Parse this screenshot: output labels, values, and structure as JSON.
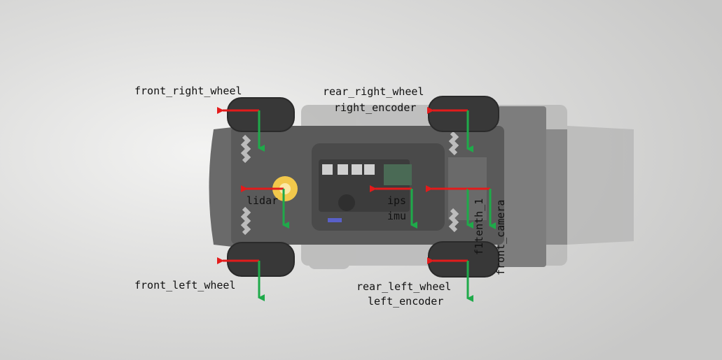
{
  "frames": {
    "front_right_wheel": "front_right_wheel",
    "rear_right_wheel": "rear_right_wheel",
    "right_encoder": "right_encoder",
    "lidar": "lidar",
    "ips": "ips",
    "imu": "imu",
    "f1tenth_1": "f1tenth_1",
    "front_camera": "front_camera",
    "front_left_wheel": "front_left_wheel",
    "rear_left_wheel": "rear_left_wheel",
    "left_encoder": "left_encoder"
  },
  "colors": {
    "x_axis": "#e31b1b",
    "y_axis": "#1faa4a",
    "background": "#dcdcdb",
    "chassis": "#5e5e5e",
    "tire": "#3a3a3a",
    "lidar_sensor": "#f2c84b"
  }
}
